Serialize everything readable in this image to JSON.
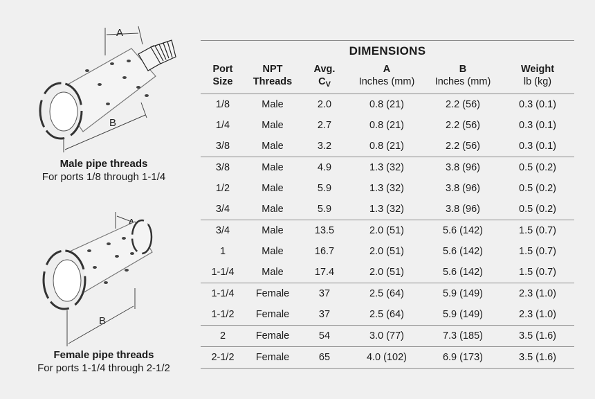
{
  "male": {
    "caption_title": "Male pipe threads",
    "caption_sub": "For ports 1/8 through 1-1/4",
    "dim_a": "A",
    "dim_b": "B"
  },
  "female": {
    "caption_title": "Female pipe threads",
    "caption_sub": "For ports 1-1/4 through 2-1/2",
    "dim_a": "A",
    "dim_b": "B"
  },
  "table": {
    "title": "DIMENSIONS",
    "headers": {
      "port": [
        "Port",
        "Size"
      ],
      "npt": [
        "NPT",
        "Threads"
      ],
      "cv": [
        "Avg.",
        "C",
        "V"
      ],
      "a": [
        "A",
        "Inches (mm)"
      ],
      "b": [
        "B",
        "Inches (mm)"
      ],
      "weight": [
        "Weight",
        "lb (kg)"
      ]
    },
    "rows": [
      {
        "port": "1/8",
        "npt": "Male",
        "cv": "2.0",
        "a": "0.8 (21)",
        "b": "2.2 (56)",
        "weight": "0.3 (0.1)"
      },
      {
        "port": "1/4",
        "npt": "Male",
        "cv": "2.7",
        "a": "0.8 (21)",
        "b": "2.2 (56)",
        "weight": "0.3 (0.1)"
      },
      {
        "port": "3/8",
        "npt": "Male",
        "cv": "3.2",
        "a": "0.8 (21)",
        "b": "2.2 (56)",
        "weight": "0.3 (0.1)"
      },
      {
        "port": "3/8",
        "npt": "Male",
        "cv": "4.9",
        "a": "1.3 (32)",
        "b": "3.8 (96)",
        "weight": "0.5 (0.2)"
      },
      {
        "port": "1/2",
        "npt": "Male",
        "cv": "5.9",
        "a": "1.3 (32)",
        "b": "3.8 (96)",
        "weight": "0.5 (0.2)"
      },
      {
        "port": "3/4",
        "npt": "Male",
        "cv": "5.9",
        "a": "1.3 (32)",
        "b": "3.8 (96)",
        "weight": "0.5 (0.2)"
      },
      {
        "port": "3/4",
        "npt": "Male",
        "cv": "13.5",
        "a": "2.0 (51)",
        "b": "5.6 (142)",
        "weight": "1.5 (0.7)"
      },
      {
        "port": "1",
        "npt": "Male",
        "cv": "16.7",
        "a": "2.0 (51)",
        "b": "5.6 (142)",
        "weight": "1.5 (0.7)"
      },
      {
        "port": "1-1/4",
        "npt": "Male",
        "cv": "17.4",
        "a": "2.0 (51)",
        "b": "5.6 (142)",
        "weight": "1.5 (0.7)"
      },
      {
        "port": "1-1/4",
        "npt": "Female",
        "cv": "37",
        "a": "2.5 (64)",
        "b": "5.9 (149)",
        "weight": "2.3 (1.0)"
      },
      {
        "port": "1-1/2",
        "npt": "Female",
        "cv": "37",
        "a": "2.5 (64)",
        "b": "5.9 (149)",
        "weight": "2.3 (1.0)"
      },
      {
        "port": "2",
        "npt": "Female",
        "cv": "54",
        "a": "3.0 (77)",
        "b": "7.3 (185)",
        "weight": "3.5 (1.6)"
      },
      {
        "port": "2-1/2",
        "npt": "Female",
        "cv": "65",
        "a": "4.0 (102)",
        "b": "6.9 (173)",
        "weight": "3.5 (1.6)"
      }
    ]
  }
}
